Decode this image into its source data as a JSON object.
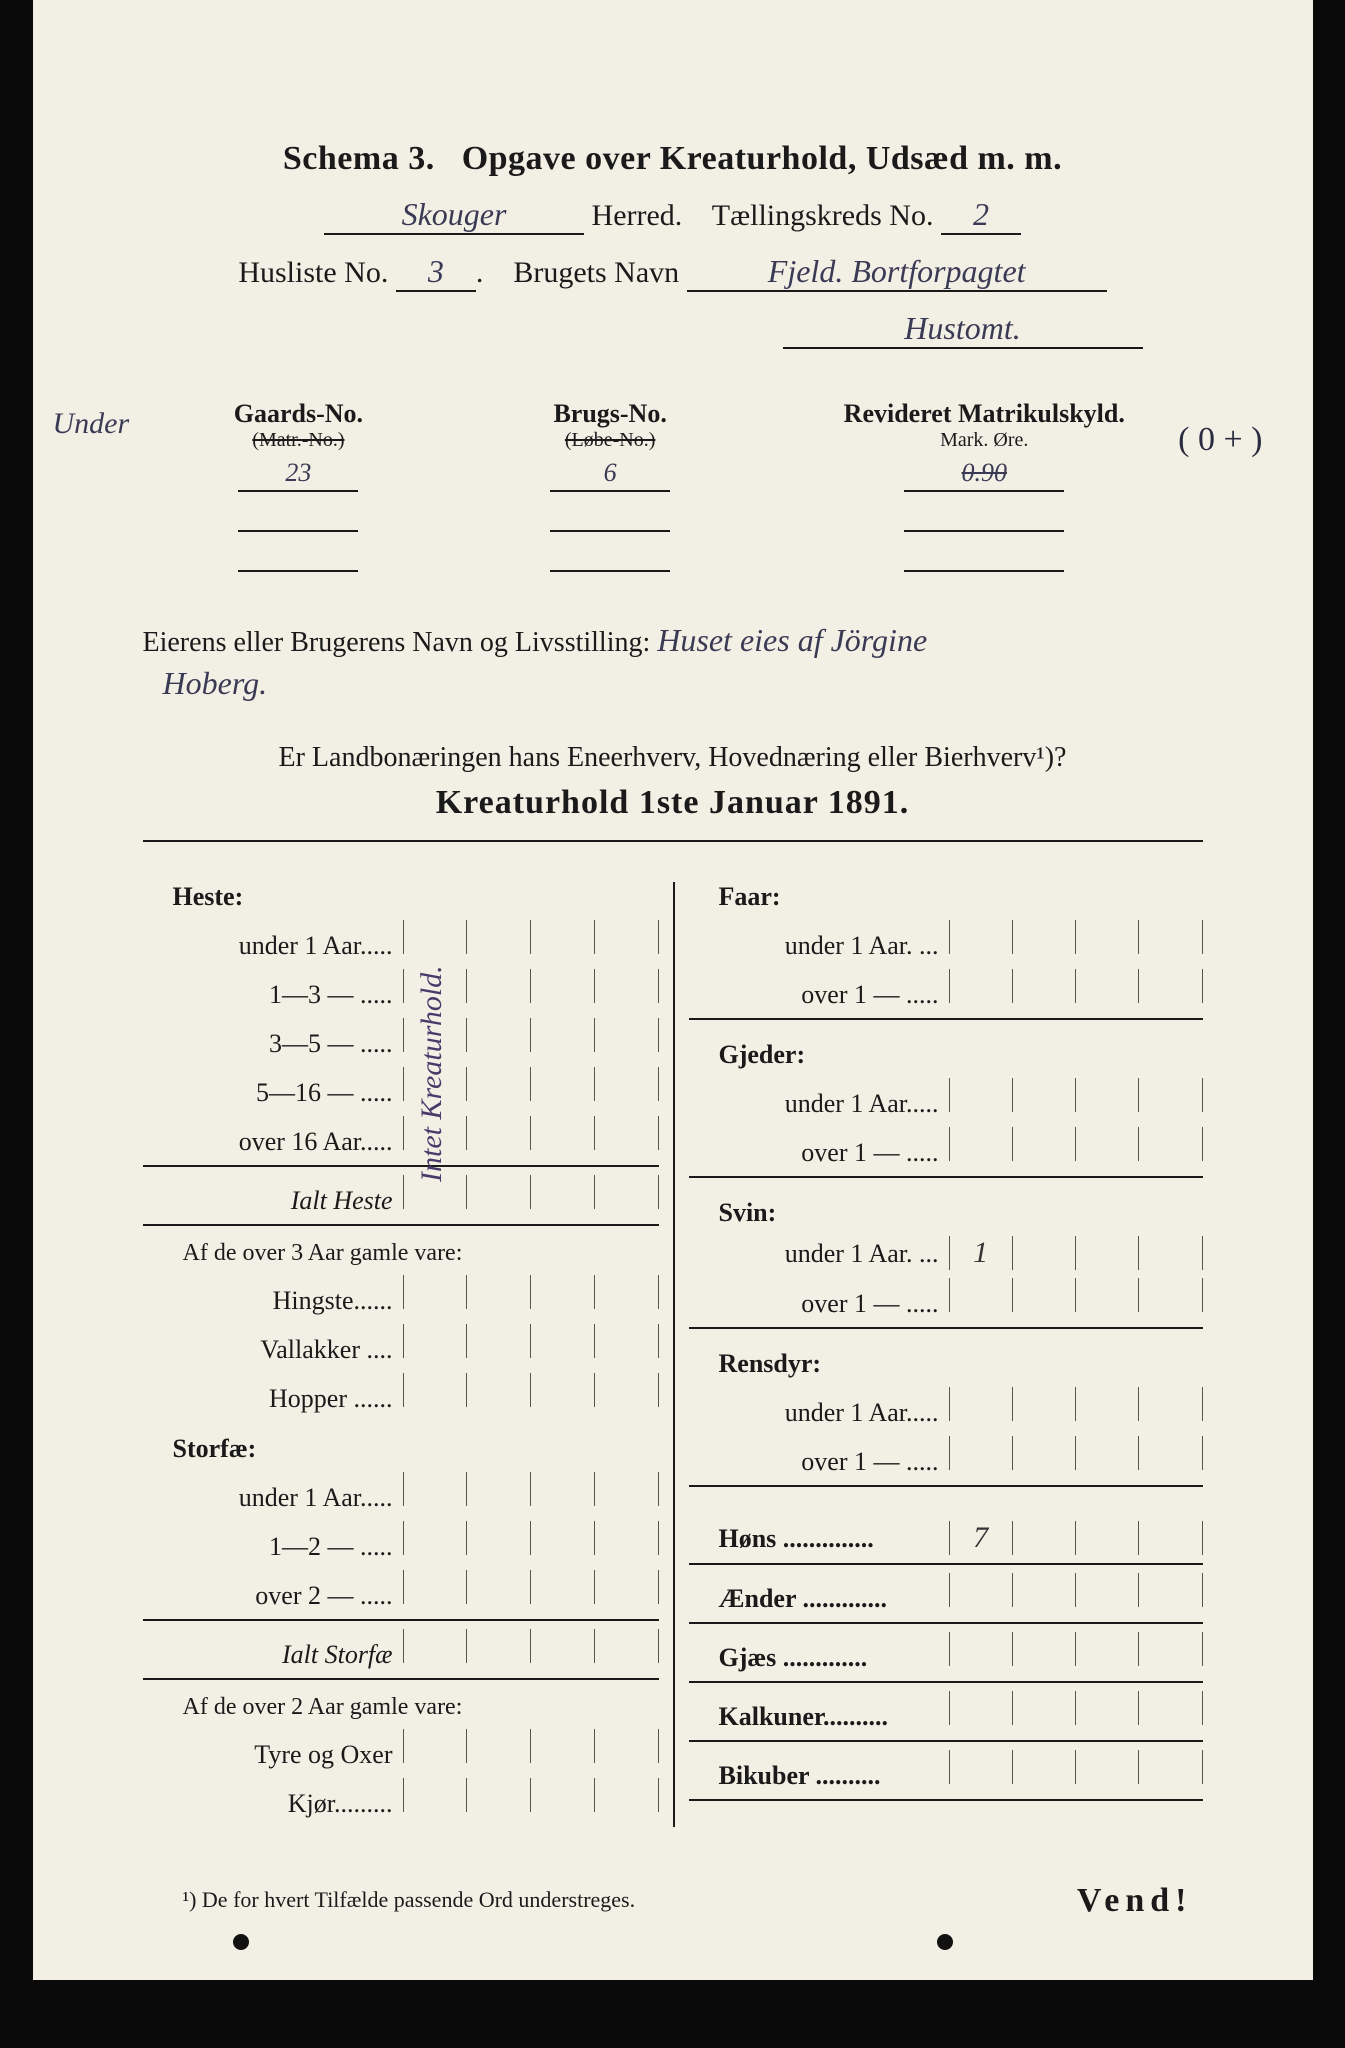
{
  "header": {
    "schema_label": "Schema 3.",
    "title": "Opgave over Kreaturhold, Udsæd m. m.",
    "herred_value": "Skouger",
    "herred_label": "Herred.",
    "kreds_label": "Tællingskreds No.",
    "kreds_value": "2",
    "husliste_label": "Husliste No.",
    "husliste_value": "3",
    "brugets_label": "Brugets Navn",
    "brugets_value": "Fjeld. Bortforpagtet",
    "brugets_value_line2": "Hustomt."
  },
  "matrikul": {
    "marginal_left": "Under",
    "gaards_label": "Gaards-No.",
    "gaards_sub": "(Matr.-No.)",
    "gaards_val": "23",
    "brugs_label": "Brugs-No.",
    "brugs_sub": "(Løbe-No.)",
    "brugs_val": "6",
    "rev_label": "Revideret Matrikulskyld.",
    "rev_sub": "Mark.    Øre.",
    "rev_val_struck": "0.90",
    "marginal_right": "( 0 + )"
  },
  "owner": {
    "lead": "Eierens eller Brugerens Navn og Livsstilling:",
    "value_line1": "Huset eies af Jörgine",
    "value_line2": "Hoberg."
  },
  "question": {
    "text": "Er Landbonæringen hans Eneerhverv, Hovednæring eller Bierhverv¹)?",
    "headline": "Kreaturhold 1ste Januar 1891."
  },
  "left_col": {
    "heste": {
      "head": "Heste:",
      "rows": [
        "under 1 Aar.....",
        "1—3  — .....",
        "3—5  — .....",
        "5—16  — .....",
        "over 16 Aar....."
      ],
      "sum": "Ialt Heste",
      "note": "Af de over 3 Aar gamle vare:",
      "subrows": [
        "Hingste......",
        "Vallakker ....",
        "Hopper ......"
      ]
    },
    "storfae": {
      "head": "Storfæ:",
      "rows": [
        "under 1 Aar.....",
        "1—2  — .....",
        "over 2  — ....."
      ],
      "sum": "Ialt Storfæ",
      "note": "Af de over 2 Aar gamle vare:",
      "subrows": [
        "Tyre og Oxer",
        "Kjør........."
      ]
    },
    "vertical_note": "Intet Kreaturhold."
  },
  "right_col": {
    "faar": {
      "head": "Faar:",
      "rows": [
        "under 1 Aar. ...",
        "over 1  — ....."
      ]
    },
    "gjeder": {
      "head": "Gjeder:",
      "rows": [
        "under 1 Aar.....",
        "over 1  — ....."
      ]
    },
    "svin": {
      "head": "Svin:",
      "rows": [
        "under 1 Aar. ...",
        "over 1  — ....."
      ],
      "vals": [
        "1",
        ""
      ]
    },
    "rensdyr": {
      "head": "Rensdyr:",
      "rows": [
        "under 1 Aar.....",
        "over 1  — ....."
      ]
    },
    "singles": [
      {
        "label": "Høns ..............",
        "val": "7"
      },
      {
        "label": "Ænder .............",
        "val": ""
      },
      {
        "label": "Gjæs .............",
        "val": ""
      },
      {
        "label": "Kalkuner..........",
        "val": ""
      },
      {
        "label": "Bikuber ..........",
        "val": ""
      }
    ]
  },
  "footnote": "¹) De for hvert Tilfælde passende Ord understreges.",
  "vend": "Vend!",
  "columns_per_side": 4,
  "colors": {
    "paper": "#f2efe4",
    "ink": "#1a1a1a",
    "handwriting": "#3a3a55"
  }
}
